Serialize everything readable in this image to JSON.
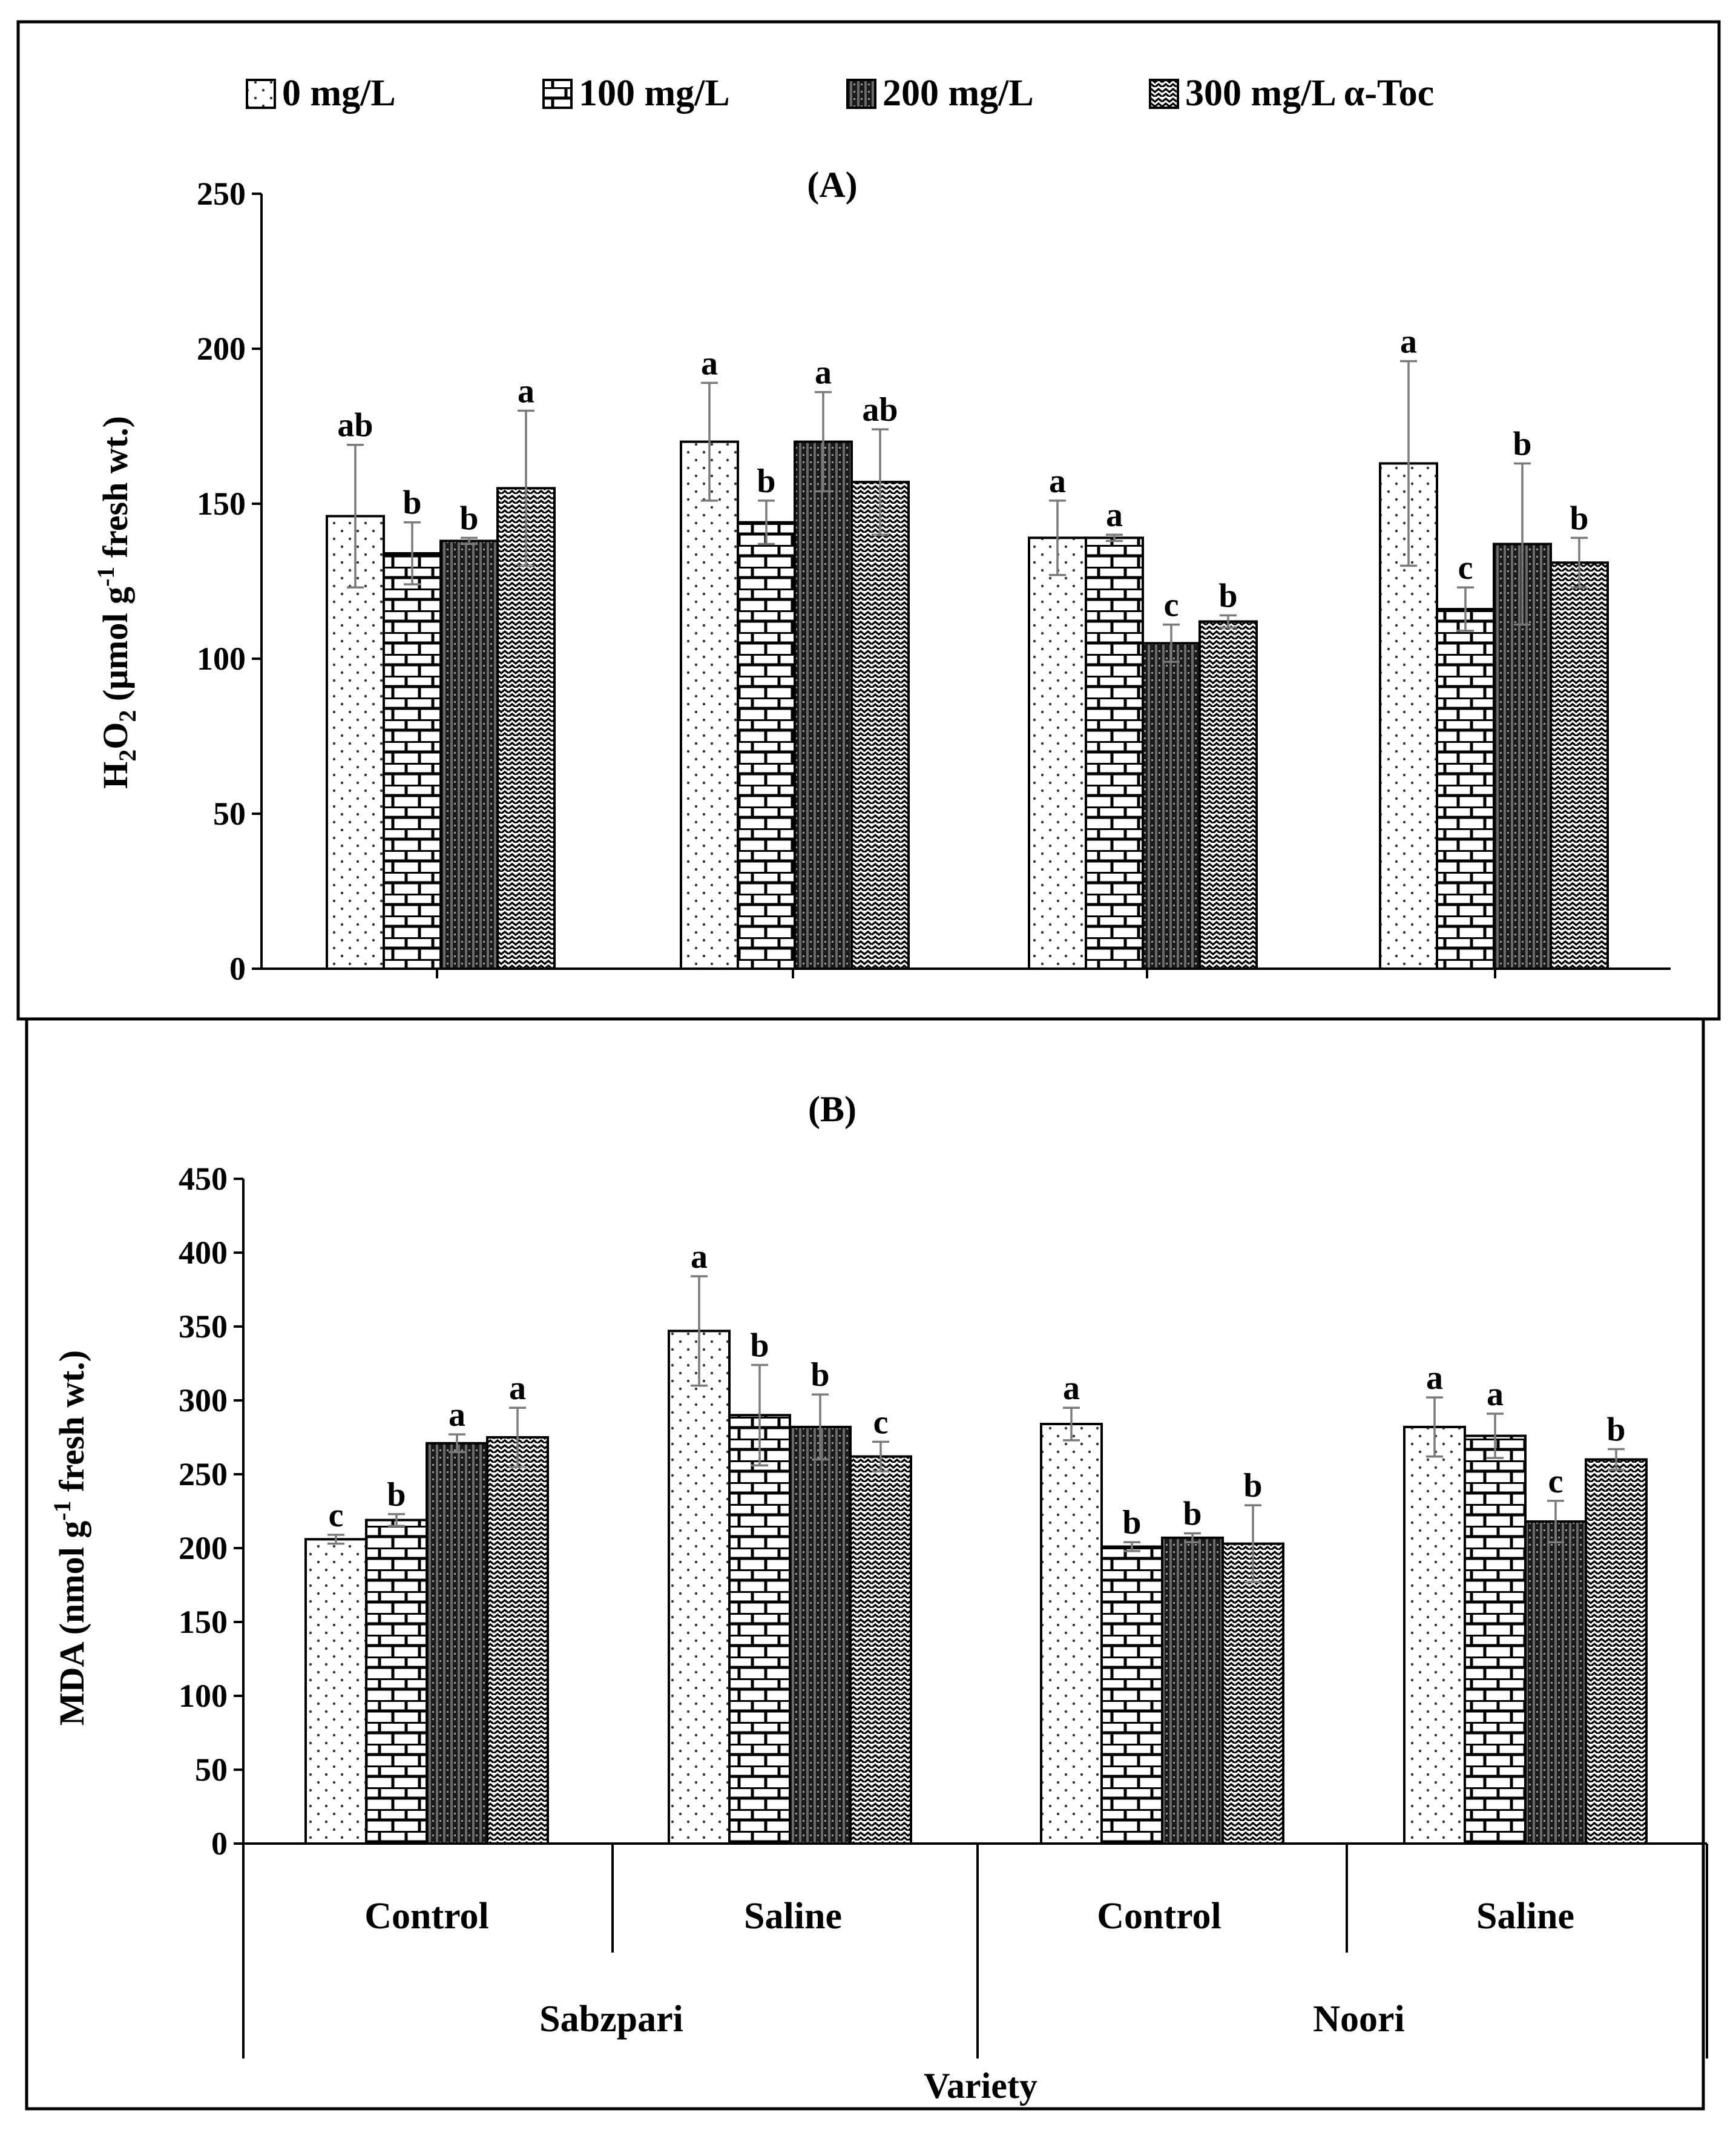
{
  "legend": {
    "items": [
      {
        "label": "0 mg/L",
        "pattern": "dots"
      },
      {
        "label": "100 mg/L",
        "pattern": "brick"
      },
      {
        "label": "200 mg/L",
        "pattern": "dark"
      },
      {
        "label": "300 mg/L α-Toc",
        "pattern": "wave"
      }
    ]
  },
  "chart_data": [
    {
      "type": "bar",
      "panel_label": "(A)",
      "ylabel_parts": [
        "H",
        "2",
        "O",
        "2",
        " (μmol g",
        "-1",
        " fresh wt.)"
      ],
      "ylim": [
        0,
        250
      ],
      "yticks": [
        "0",
        "50",
        "100",
        "150",
        "200",
        "250"
      ],
      "groups": [
        "Sabzpari Control",
        "Sabzpari Saline",
        "Noori Control",
        "Noori Saline"
      ],
      "series": [
        {
          "name": "0 mg/L",
          "values": [
            146,
            170,
            139,
            163
          ],
          "errors": [
            23,
            19,
            12,
            33
          ],
          "letters": [
            "ab",
            "a",
            "a",
            "a"
          ]
        },
        {
          "name": "100 mg/L",
          "values": [
            134,
            144,
            139,
            116
          ],
          "errors": [
            10,
            7,
            1,
            7
          ],
          "letters": [
            "b",
            "b",
            "a",
            "c"
          ]
        },
        {
          "name": "200 mg/L",
          "values": [
            138,
            170,
            105,
            137
          ],
          "errors": [
            1,
            16,
            6,
            26
          ],
          "letters": [
            "b",
            "a",
            "c",
            "b"
          ]
        },
        {
          "name": "300 mg/L α-Toc",
          "values": [
            155,
            157,
            112,
            131
          ],
          "errors": [
            25,
            17,
            2,
            8
          ],
          "letters": [
            "a",
            "ab",
            "b",
            "b"
          ]
        }
      ]
    },
    {
      "type": "bar",
      "panel_label": "(B)",
      "ylabel_parts": [
        "MDA (nmol g",
        "-1",
        " fresh wt.)"
      ],
      "ylim": [
        0,
        450
      ],
      "yticks": [
        "0",
        "50",
        "100",
        "150",
        "200",
        "250",
        "300",
        "350",
        "400",
        "450"
      ],
      "groups": [
        "Sabzpari Control",
        "Sabzpari Saline",
        "Noori Control",
        "Noori Saline"
      ],
      "series": [
        {
          "name": "0 mg/L",
          "values": [
            206,
            347,
            284,
            282
          ],
          "errors": [
            3,
            37,
            11,
            20
          ],
          "letters": [
            "c",
            "a",
            "a",
            "a"
          ]
        },
        {
          "name": "100 mg/L",
          "values": [
            219,
            290,
            201,
            276
          ],
          "errors": [
            4,
            34,
            3,
            15
          ],
          "letters": [
            "b",
            "b",
            "b",
            "a"
          ]
        },
        {
          "name": "200 mg/L",
          "values": [
            271,
            282,
            207,
            218
          ],
          "errors": [
            6,
            22,
            3,
            14
          ],
          "letters": [
            "a",
            "b",
            "b",
            "c"
          ]
        },
        {
          "name": "300 mg/L α-Toc",
          "values": [
            275,
            262,
            203,
            260
          ],
          "errors": [
            20,
            10,
            26,
            7
          ],
          "letters": [
            "a",
            "c",
            "b",
            "b"
          ]
        }
      ],
      "x_categories": [
        {
          "treatment": "Control",
          "variety": "Sabzpari"
        },
        {
          "treatment": "Saline",
          "variety": "Sabzpari"
        },
        {
          "treatment": "Control",
          "variety": "Noori"
        },
        {
          "treatment": "Saline",
          "variety": "Noori"
        }
      ],
      "varieties": [
        "Sabzpari",
        "Noori"
      ],
      "xlabel": "Variety"
    }
  ]
}
